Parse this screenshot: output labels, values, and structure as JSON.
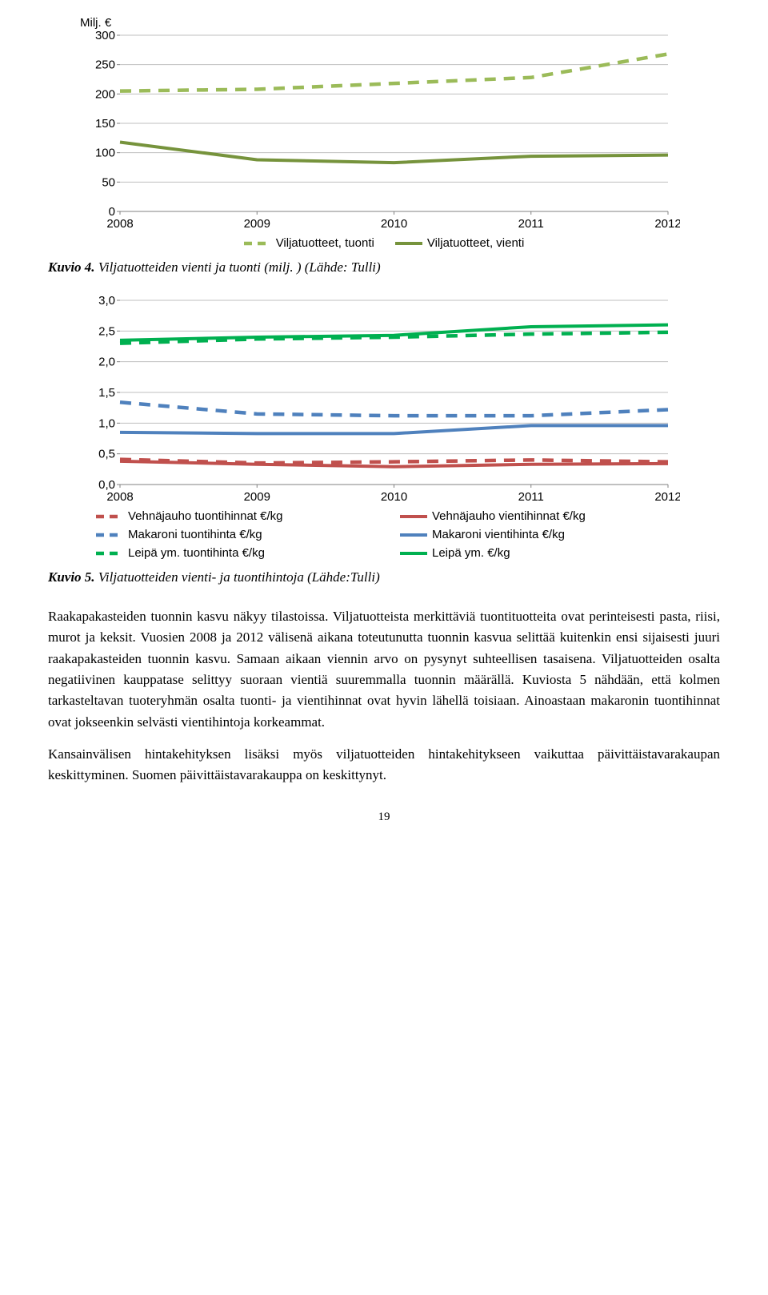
{
  "chart1": {
    "type": "line",
    "y_axis_label": "Milj. €",
    "background_color": "#ffffff",
    "grid_color": "#bfbfbf",
    "axis_color": "#808080",
    "tick_fontsize": 15,
    "tick_font": "Arial",
    "xlim": [
      0,
      4
    ],
    "x_categories": [
      "2008",
      "2009",
      "2010",
      "2011",
      "2012"
    ],
    "ylim": [
      0,
      300
    ],
    "ytick_step": 50,
    "yticks": [
      0,
      50,
      100,
      150,
      200,
      250,
      300
    ],
    "series": [
      {
        "name": "Viljatuotteet, tuonti",
        "color": "#9bbb59",
        "stroke_width": 4.5,
        "dash": "14,10",
        "values": [
          205,
          208,
          218,
          228,
          268
        ]
      },
      {
        "name": "Viljatuotteet, vienti",
        "color": "#76933c",
        "stroke_width": 4,
        "dash": "none",
        "values": [
          118,
          88,
          83,
          94,
          96
        ]
      }
    ],
    "legend": {
      "position": "bottom",
      "items": [
        "Viljatuotteet, tuonti",
        "Viljatuotteet, vienti"
      ]
    }
  },
  "caption1": {
    "label": "Kuvio 4.",
    "text": "Viljatuotteiden vienti ja tuonti (milj. ) (Lähde: Tulli)"
  },
  "chart2": {
    "type": "line",
    "background_color": "#ffffff",
    "grid_color": "#bfbfbf",
    "axis_color": "#808080",
    "tick_fontsize": 15,
    "tick_font": "Arial",
    "xlim": [
      0,
      4
    ],
    "x_categories": [
      "2008",
      "2009",
      "2010",
      "2011",
      "2012"
    ],
    "ylim": [
      0.0,
      3.0
    ],
    "ytick_step": 0.5,
    "yticks": [
      "0,0",
      "0,5",
      "1,0",
      "1,5",
      "2,0",
      "2,5",
      "3,0"
    ],
    "series": [
      {
        "name": "Vehnäjauho tuontihinnat €/kg",
        "color": "#c0504d",
        "stroke_width": 4.5,
        "dash": "14,10",
        "values": [
          0.41,
          0.35,
          0.37,
          0.4,
          0.37
        ]
      },
      {
        "name": "Vehnäjauho vientihinnat €/kg",
        "color": "#c0504d",
        "stroke_width": 4,
        "dash": "none",
        "values": [
          0.38,
          0.33,
          0.29,
          0.33,
          0.34
        ]
      },
      {
        "name": "Makaroni tuontihinta €/kg",
        "color": "#4f81bd",
        "stroke_width": 4.5,
        "dash": "14,10",
        "values": [
          1.34,
          1.15,
          1.12,
          1.12,
          1.22
        ]
      },
      {
        "name": "Makaroni vientihinta €/kg",
        "color": "#4f81bd",
        "stroke_width": 4,
        "dash": "none",
        "values": [
          0.85,
          0.83,
          0.83,
          0.96,
          0.96
        ]
      },
      {
        "name": "Leipä ym. tuontihinta €/kg",
        "color": "#00b050",
        "stroke_width": 4.5,
        "dash": "14,10",
        "values": [
          2.3,
          2.37,
          2.4,
          2.45,
          2.48
        ]
      },
      {
        "name": "Leipä ym. €/kg",
        "color": "#00b050",
        "stroke_width": 4,
        "dash": "none",
        "values": [
          2.35,
          2.4,
          2.43,
          2.57,
          2.6
        ]
      }
    ],
    "legend": {
      "position": "bottom",
      "columns": 2,
      "items": [
        "Vehnäjauho tuontihinnat €/kg",
        "Vehnäjauho vientihinnat €/kg",
        "Makaroni tuontihinta €/kg",
        "Makaroni vientihinta €/kg",
        "Leipä ym. tuontihinta €/kg",
        "Leipä ym. €/kg"
      ]
    }
  },
  "caption2": {
    "label": "Kuvio 5.",
    "text": "Viljatuotteiden vienti- ja tuontihintoja (Lähde:Tulli)"
  },
  "body": {
    "p1": "Raakapakasteiden tuonnin kasvu näkyy tilastoissa. Viljatuotteista merkittäviä tuontituotteita ovat perinteisesti pasta, riisi, murot ja keksit. Vuosien 2008 ja 2012 välisenä aikana toteutunutta tuonnin kasvua selittää kuitenkin ensi sijaisesti juuri raakapakasteiden tuonnin kasvu. Samaan aikaan viennin arvo on pysynyt suhteellisen tasaisena. Viljatuotteiden osalta negatiivinen kauppatase selittyy suoraan vientiä suuremmalla tuonnin määrällä. Kuviosta 5 nähdään, että kolmen tarkasteltavan tuoteryhmän osalta tuonti- ja vientihinnat ovat hyvin lähellä toisiaan. Ainoastaan makaronin tuontihinnat ovat jokseenkin selvästi vientihintoja korkeammat.",
    "p2": "Kansainvälisen hintakehityksen lisäksi myös viljatuotteiden hintakehitykseen vaikuttaa päivittäistavarakaupan keskittyminen. Suomen päivittäistavarakauppa on keskittynyt."
  },
  "page_number": "19"
}
